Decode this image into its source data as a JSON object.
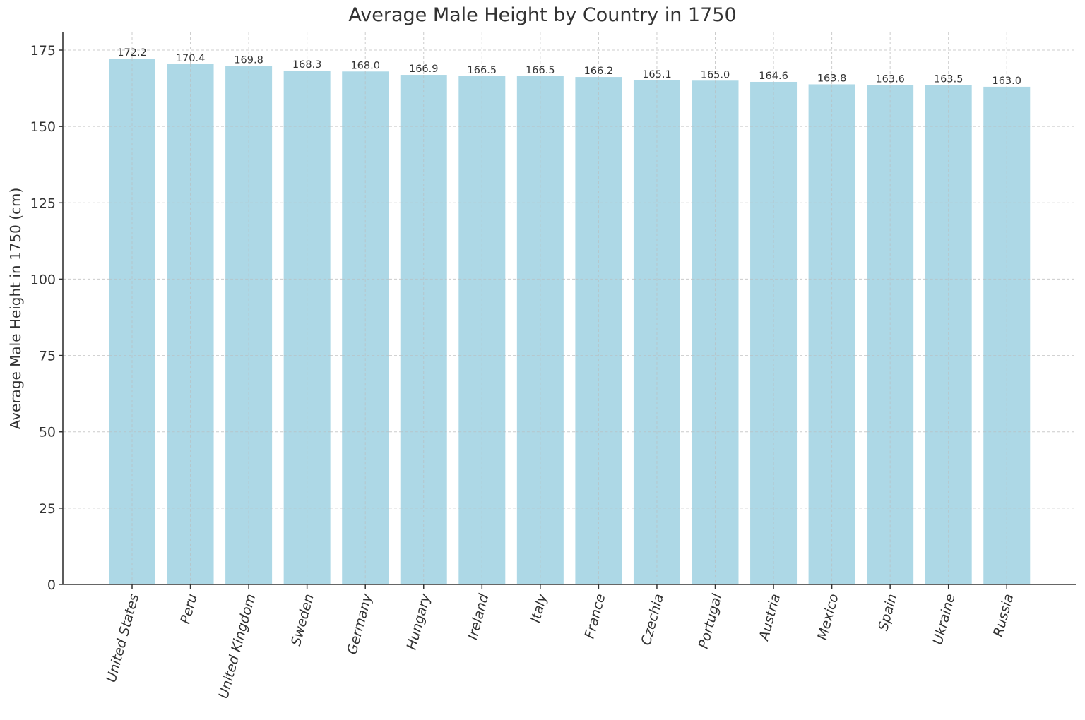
{
  "chart_data": {
    "type": "bar",
    "title": "Average Male Height by Country in 1750",
    "xlabel": "",
    "ylabel": "Average Male Height in 1750 (cm)",
    "categories": [
      "United States",
      "Peru",
      "United Kingdom",
      "Sweden",
      "Germany",
      "Hungary",
      "Ireland",
      "Italy",
      "France",
      "Czechia",
      "Portugal",
      "Austria",
      "Mexico",
      "Spain",
      "Ukraine",
      "Russia"
    ],
    "values": [
      172.2,
      170.4,
      169.8,
      168.3,
      168.0,
      166.9,
      166.5,
      166.5,
      166.2,
      165.1,
      165.0,
      164.6,
      163.8,
      163.6,
      163.5,
      163.0
    ],
    "value_labels": [
      "172.2",
      "170.4",
      "169.8",
      "168.3",
      "168.0",
      "166.9",
      "166.5",
      "166.5",
      "166.2",
      "165.1",
      "165.0",
      "164.6",
      "163.8",
      "163.6",
      "163.5",
      "163.0"
    ],
    "yticks": [
      0,
      25,
      50,
      75,
      100,
      125,
      150,
      175
    ],
    "ylim": [
      0,
      181
    ],
    "grid": true,
    "grid_style": "dashed",
    "legend": null,
    "x_tick_rotation": 75,
    "colors": {
      "bar": "#add8e6",
      "text": "#333333",
      "grid": "#cccccc",
      "axis": "#333333"
    }
  }
}
